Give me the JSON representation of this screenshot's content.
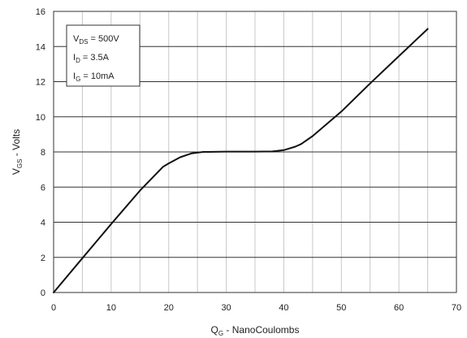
{
  "chart_data": {
    "type": "line",
    "xlabel_main": "Q",
    "xlabel_sub": "G",
    "xlabel_rest": " - NanoCoulombs",
    "ylabel_main": "V",
    "ylabel_sub": "GS",
    "ylabel_rest": " - Volts",
    "xlim": [
      0,
      70
    ],
    "ylim": [
      0,
      16
    ],
    "x_ticks": [
      "0",
      "10",
      "20",
      "30",
      "40",
      "50",
      "60",
      "70"
    ],
    "y_ticks": [
      "0",
      "2",
      "4",
      "6",
      "8",
      "10",
      "12",
      "14",
      "16"
    ],
    "grid": true,
    "minor_x_step": 5,
    "line_color": "#111111",
    "grid_color": "#c8c8c8",
    "series": [
      {
        "x": [
          0,
          5,
          10,
          15,
          19,
          20,
          22,
          24,
          26,
          30,
          35,
          38,
          40,
          42,
          43,
          45,
          50,
          55,
          60,
          65
        ],
        "y": [
          0,
          1.95,
          3.9,
          5.8,
          7.15,
          7.35,
          7.7,
          7.92,
          8.0,
          8.02,
          8.02,
          8.03,
          8.1,
          8.3,
          8.45,
          8.9,
          10.3,
          11.9,
          13.45,
          15.0
        ]
      }
    ],
    "legend": {
      "position": "top-left",
      "lines": [
        {
          "main": "V",
          "sub": "DS",
          "rest": " = 500V"
        },
        {
          "main": "I",
          "sub": "D",
          "rest": " = 3.5A"
        },
        {
          "main": "I",
          "sub": "G",
          "rest": " = 10mA"
        }
      ]
    }
  }
}
